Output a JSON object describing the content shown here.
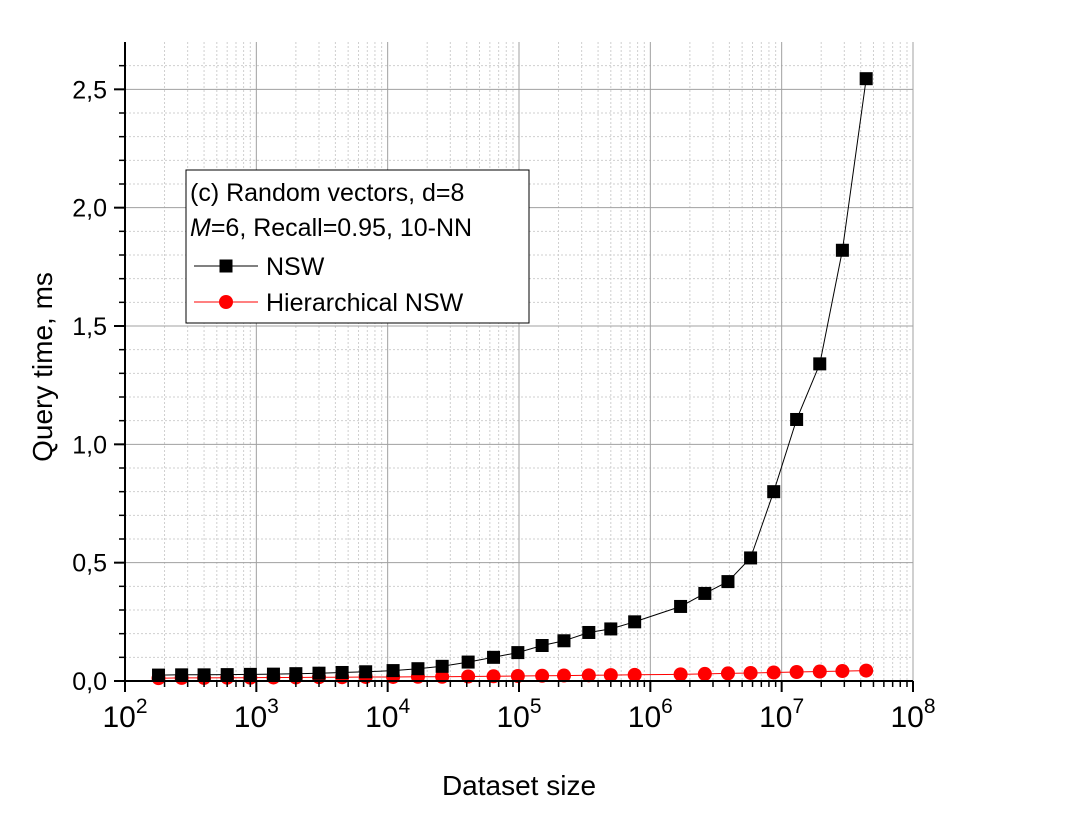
{
  "chart_data": {
    "type": "line",
    "xscale": "log",
    "xlim": [
      100,
      100000000
    ],
    "ylim": [
      0,
      2.7
    ],
    "xlabel": "Dataset size",
    "ylabel": "Query time, ms",
    "x_ticks": [
      {
        "value": 100,
        "base": "10",
        "exp": "2"
      },
      {
        "value": 1000,
        "base": "10",
        "exp": "3"
      },
      {
        "value": 10000,
        "base": "10",
        "exp": "4"
      },
      {
        "value": 100000,
        "base": "10",
        "exp": "5"
      },
      {
        "value": 1000000,
        "base": "10",
        "exp": "6"
      },
      {
        "value": 10000000,
        "base": "10",
        "exp": "7"
      },
      {
        "value": 100000000,
        "base": "10",
        "exp": "8"
      }
    ],
    "y_ticks": [
      {
        "value": 0.0,
        "label": "0,0"
      },
      {
        "value": 0.5,
        "label": "0,5"
      },
      {
        "value": 1.0,
        "label": "1,0"
      },
      {
        "value": 1.5,
        "label": "1,5"
      },
      {
        "value": 2.0,
        "label": "2,0"
      },
      {
        "value": 2.5,
        "label": "2,5"
      }
    ],
    "grid": true,
    "legend_position": "upper-left",
    "legend_title_line1": "(c) Random vectors, d=8",
    "legend_title_line2_italic": "M",
    "legend_title_line2_rest": "=6, Recall=0.95, 10-NN",
    "x": [
      180,
      270,
      400,
      600,
      900,
      1350,
      2000,
      3000,
      4500,
      6800,
      11000,
      17000,
      26000,
      41000,
      64000,
      98000,
      150000,
      220000,
      340000,
      500000,
      760000,
      1700000,
      2600000,
      3900000,
      5800000,
      8700000,
      13000000,
      19500000,
      29000000,
      44000000
    ],
    "series": [
      {
        "name": "NSW",
        "color": "#000000",
        "marker": "square",
        "values": [
          0.025,
          0.026,
          0.026,
          0.027,
          0.028,
          0.029,
          0.031,
          0.033,
          0.036,
          0.039,
          0.044,
          0.052,
          0.062,
          0.08,
          0.1,
          0.12,
          0.15,
          0.17,
          0.205,
          0.22,
          0.25,
          0.315,
          0.37,
          0.42,
          0.52,
          0.8,
          1.105,
          1.34,
          1.82,
          2.545
        ]
      },
      {
        "name": "Hierarchical NSW",
        "color": "#ff0000",
        "marker": "circle",
        "values": [
          0.012,
          0.013,
          0.013,
          0.014,
          0.014,
          0.015,
          0.015,
          0.016,
          0.016,
          0.017,
          0.017,
          0.018,
          0.018,
          0.019,
          0.02,
          0.021,
          0.022,
          0.023,
          0.024,
          0.025,
          0.026,
          0.028,
          0.03,
          0.032,
          0.034,
          0.036,
          0.038,
          0.04,
          0.042,
          0.044
        ]
      }
    ]
  }
}
